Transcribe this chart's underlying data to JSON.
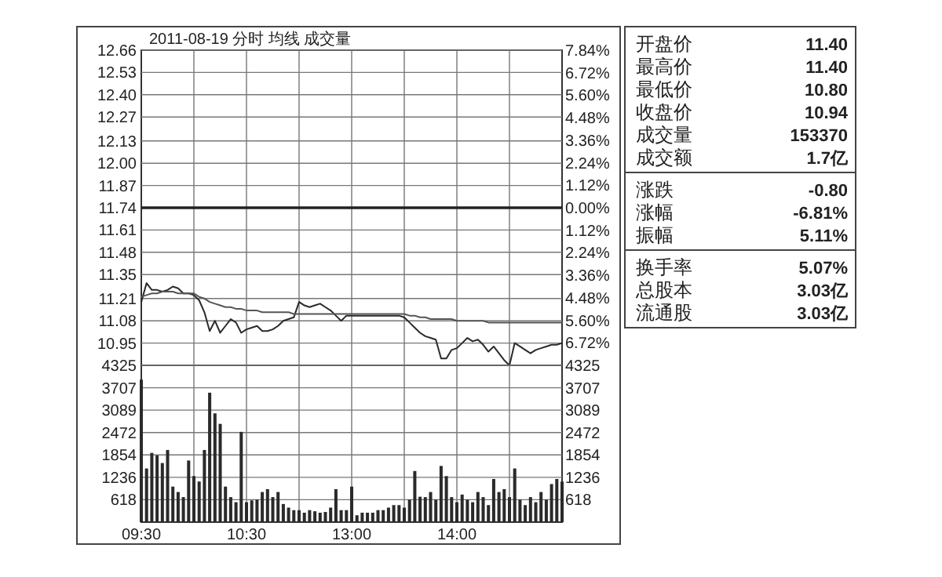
{
  "chart_data": [
    {
      "type": "line",
      "title": "2011-08-19 分时 均线 成交量",
      "categories": [
        null,
        null,
        null,
        null,
        null,
        null,
        null,
        null,
        null,
        null,
        null,
        null,
        null,
        null,
        null,
        null,
        null,
        null,
        null,
        null,
        null,
        null,
        null,
        null,
        null,
        null,
        null,
        null,
        null,
        null,
        null,
        null,
        null,
        null,
        null,
        null,
        null,
        null,
        null,
        null,
        null,
        null,
        null,
        null,
        null,
        null,
        null,
        null,
        null,
        null,
        null,
        null,
        null,
        null,
        null,
        null,
        null,
        null,
        null,
        null,
        null,
        null,
        null,
        null,
        null,
        null,
        null,
        null,
        null,
        null,
        null,
        null,
        null,
        null,
        null,
        null,
        null,
        null,
        null,
        null,
        null
      ],
      "ylim": [
        10.82,
        12.66
      ],
      "yticks": [
        12.66,
        12.53,
        {
          "value": 12.4,
          "label": "12.40"
        },
        12.27,
        12.13,
        {
          "value": 12,
          "label": "12.00"
        },
        11.87,
        11.74,
        11.61,
        11.48,
        11.35,
        11.21,
        11.08,
        10.95
      ],
      "y2lim": [
        -7.84,
        7.84
      ],
      "y2ticks": [
        {
          "value": 7.84,
          "label": "7.84%"
        },
        {
          "value": 6.72,
          "label": "6.72%"
        },
        {
          "value": 5.6,
          "label": "5.60%"
        },
        {
          "value": 4.48,
          "label": "4.48%"
        },
        {
          "value": 3.36,
          "label": "3.36%"
        },
        {
          "value": 2.24,
          "label": "2.24%"
        },
        {
          "value": 1.12,
          "label": "1.12%"
        },
        {
          "value": 0,
          "label": "0.00%"
        },
        {
          "value": -1.12,
          "label": "1.12%"
        },
        {
          "value": -2.24,
          "label": "2.24%"
        },
        {
          "value": -3.36,
          "label": "3.36%"
        },
        {
          "value": -4.48,
          "label": "4.48%"
        },
        {
          "value": -5.6,
          "label": "5.60%"
        },
        {
          "value": -6.72,
          "label": "6.72%"
        }
      ],
      "grid": true,
      "tick_labels": "y",
      "ref_lines": [
        {
          "axis": "y",
          "value": 11.74
        }
      ],
      "series": [
        {
          "color": "#2a2a2a",
          "values": [
            11.19,
            11.3,
            11.26,
            11.26,
            11.25,
            11.26,
            11.28,
            11.27,
            11.24,
            11.24,
            11.23,
            11.2,
            11.13,
            11.02,
            11.08,
            11.01,
            11.05,
            11.09,
            11.07,
            11.01,
            11.03,
            11.04,
            11.05,
            11.02,
            11.02,
            11.03,
            11.05,
            11.08,
            11.09,
            11.1,
            11.19,
            11.17,
            11.16,
            11.17,
            11.18,
            11.16,
            11.14,
            11.11,
            11.08,
            11.11,
            11.11,
            11.11,
            11.11,
            11.11,
            11.11,
            11.11,
            11.11,
            11.11,
            11.11,
            11.11,
            11.1,
            11.07,
            11.04,
            11.01,
            10.99,
            10.98,
            10.97,
            10.86,
            10.86,
            10.91,
            10.92,
            10.95,
            10.98,
            10.96,
            10.97,
            10.94,
            10.9,
            10.93,
            10.89,
            10.85,
            10.82,
            10.95,
            10.93,
            10.91,
            10.89,
            10.91,
            10.92,
            10.93,
            10.94,
            10.94,
            10.95
          ]
        },
        {
          "color": "#555555",
          "values": [
            11.22,
            11.23,
            11.24,
            11.24,
            11.25,
            11.25,
            11.25,
            11.24,
            11.24,
            11.24,
            11.24,
            11.22,
            11.21,
            11.19,
            11.18,
            11.17,
            11.16,
            11.16,
            11.15,
            11.15,
            11.14,
            11.14,
            11.14,
            11.13,
            11.13,
            11.13,
            11.13,
            11.13,
            11.13,
            11.12,
            11.12,
            11.12,
            11.12,
            11.12,
            11.12,
            11.12,
            11.12,
            11.12,
            11.12,
            11.12,
            11.12,
            11.12,
            11.12,
            11.12,
            11.12,
            11.12,
            11.12,
            11.12,
            11.12,
            11.12,
            11.12,
            11.11,
            11.11,
            11.1,
            11.1,
            11.09,
            11.09,
            11.09,
            11.09,
            11.09,
            11.08,
            11.08,
            11.08,
            11.08,
            11.08,
            11.08,
            11.07,
            11.07,
            11.07,
            11.07,
            11.07,
            11.07,
            11.07,
            11.07,
            11.07,
            11.07,
            11.07,
            11.07,
            11.07,
            11.07,
            11.07
          ]
        }
      ]
    },
    {
      "type": "bar",
      "categories": [
        "09:30",
        null,
        null,
        null,
        null,
        null,
        null,
        null,
        null,
        null,
        null,
        null,
        null,
        null,
        null,
        null,
        null,
        null,
        null,
        null,
        "10:30",
        null,
        null,
        null,
        null,
        null,
        null,
        null,
        null,
        null,
        null,
        null,
        null,
        null,
        null,
        null,
        null,
        null,
        null,
        null,
        "13:00",
        null,
        null,
        null,
        null,
        null,
        null,
        null,
        null,
        null,
        null,
        null,
        null,
        null,
        null,
        null,
        null,
        null,
        null,
        null,
        "14:00",
        null,
        null,
        null,
        null,
        null,
        null,
        null,
        null,
        null,
        null,
        null,
        null,
        null,
        null,
        null,
        null,
        null,
        null,
        null,
        null
      ],
      "ylim": [
        0,
        4325
      ],
      "yticks": [
        618,
        1236,
        1854,
        2472,
        3089,
        3707,
        4325
      ],
      "y2lim": [
        0,
        4325
      ],
      "y2ticks": [
        618,
        1236,
        1854,
        2472,
        3089,
        3707,
        4325
      ],
      "grid": true,
      "color": "#2a2a2a",
      "values": [
        3930,
        1480,
        1910,
        1840,
        1630,
        1990,
        980,
        830,
        690,
        1700,
        1270,
        1120,
        1990,
        3570,
        3000,
        2710,
        980,
        690,
        550,
        2490,
        550,
        600,
        620,
        830,
        910,
        690,
        830,
        500,
        400,
        330,
        330,
        260,
        330,
        300,
        260,
        280,
        400,
        910,
        330,
        330,
        980,
        190,
        260,
        260,
        260,
        330,
        330,
        400,
        470,
        470,
        400,
        620,
        1410,
        700,
        690,
        830,
        620,
        1550,
        1270,
        690,
        550,
        760,
        620,
        550,
        830,
        690,
        470,
        1190,
        830,
        910,
        690,
        1480,
        620,
        470,
        690,
        550,
        830,
        620,
        1050,
        1190,
        1120
      ]
    },
    {
      "type": "other",
      "annotations": [
        "开盘价",
        "11.40",
        "最高价",
        "11.40",
        "最低价",
        "10.80",
        "收盘价",
        "10.94",
        "成交量",
        "153370",
        "成交额",
        "1.7亿"
      ]
    },
    {
      "type": "other",
      "annotations": [
        "涨跌",
        "-0.80",
        "涨幅",
        "-6.81%",
        "振幅",
        "5.11%"
      ]
    },
    {
      "type": "other",
      "annotations": [
        "换手率",
        "5.07%",
        "总股本",
        "3.03亿",
        "流通股",
        "3.03亿"
      ]
    }
  ]
}
